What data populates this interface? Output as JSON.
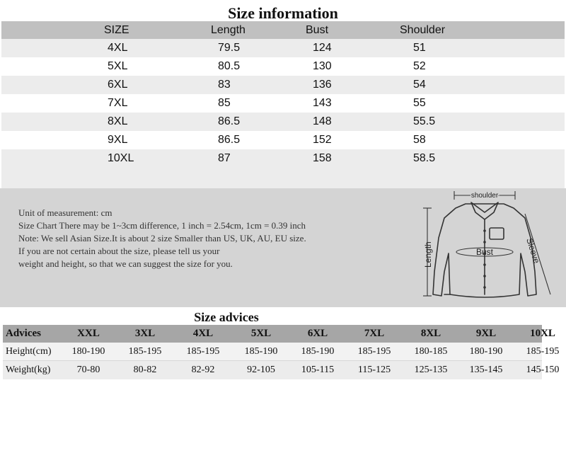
{
  "size_info": {
    "title": "Size information",
    "headers": [
      "SIZE",
      "Length",
      "Bust",
      "Shoulder"
    ],
    "rows": [
      [
        "4XL",
        "79.5",
        "124",
        "51"
      ],
      [
        "5XL",
        "80.5",
        "130",
        "52"
      ],
      [
        "6XL",
        "83",
        "136",
        "54"
      ],
      [
        "7XL",
        "85",
        "143",
        "55"
      ],
      [
        "8XL",
        "86.5",
        "148",
        "55.5"
      ],
      [
        "9XL",
        "86.5",
        "152",
        "58"
      ],
      [
        "10XL",
        "87",
        "158",
        "58.5"
      ]
    ]
  },
  "notes": {
    "lines": [
      "Unit of measurement: cm",
      "Size Chart There may be 1~3cm difference, 1 inch = 2.54cm, 1cm = 0.39 inch",
      "Note: We sell Asian Size.It is about 2 size Smaller than US, UK, AU, EU size.",
      "If you are not    certain about the size,  please tell us your",
      "weight and height, so that we can suggest the size for you."
    ],
    "diagram_labels": {
      "shoulder": "shoulder",
      "length": "Length",
      "bust": "Bust",
      "sleeve": "Sleeve"
    }
  },
  "advice": {
    "title": "Size advices",
    "headers": [
      "Advices",
      "XXL",
      "3XL",
      "4XL",
      "5XL",
      "6XL",
      "7XL",
      "8XL",
      "9XL",
      "10XL"
    ],
    "height": [
      "Height(cm)",
      "180-190",
      "185-195",
      "185-195",
      "185-190",
      "185-190",
      "185-195",
      "180-185",
      "180-190",
      "185-195"
    ],
    "weight": [
      "Weight(kg)",
      "70-80",
      "80-82",
      "82-92",
      "92-105",
      "105-115",
      "115-125",
      "125-135",
      "135-145",
      "145-150"
    ]
  },
  "colors": {
    "header_gray": "#c0c0c0",
    "row_light": "#ffffff",
    "row_alt": "#ececec",
    "panel_gray": "#d4d4d4",
    "advice_header": "#a6a6a6"
  }
}
